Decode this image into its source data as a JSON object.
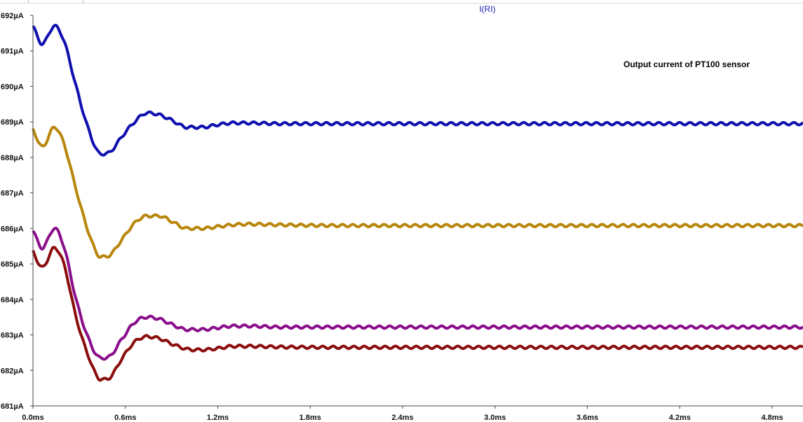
{
  "window": {
    "trace_expression": "I(RI)"
  },
  "chart_data": {
    "type": "line",
    "title": "I(RI)",
    "xlabel": "",
    "ylabel": "",
    "xlim": [
      0,
      5.0
    ],
    "ylim": [
      681,
      692
    ],
    "x_unit": "ms",
    "y_unit": "µA",
    "grid": false,
    "x_ticks": [
      "0.0ms",
      "0.6ms",
      "1.2ms",
      "1.8ms",
      "2.4ms",
      "3.0ms",
      "3.6ms",
      "4.2ms",
      "4.8ms"
    ],
    "y_ticks": [
      "681µA",
      "682µA",
      "683µA",
      "684µA",
      "685µA",
      "686µA",
      "687µA",
      "688µA",
      "689µA",
      "690µA",
      "691µA",
      "692µA"
    ],
    "annotations": [
      {
        "text": "Output current of PT100 sensor"
      }
    ],
    "series": [
      {
        "color": "#1010b0",
        "x": [
          0.0,
          0.06,
          0.14,
          0.2,
          0.28,
          0.36,
          0.44,
          0.5,
          0.58,
          0.66,
          0.74,
          0.82,
          0.9,
          1.0,
          1.1,
          1.2,
          1.3,
          1.4,
          1.6,
          2.0,
          3.0,
          4.0,
          5.0
        ],
        "y": [
          691.7,
          691.2,
          691.7,
          691.3,
          690.0,
          688.8,
          688.1,
          688.15,
          688.6,
          689.0,
          689.25,
          689.2,
          689.05,
          688.85,
          688.85,
          688.92,
          688.97,
          688.97,
          688.95,
          688.95,
          688.95,
          688.95,
          688.95
        ]
      },
      {
        "color": "#b8860b",
        "x": [
          0.0,
          0.06,
          0.14,
          0.2,
          0.28,
          0.36,
          0.44,
          0.5,
          0.58,
          0.66,
          0.74,
          0.82,
          0.9,
          1.0,
          1.1,
          1.2,
          1.3,
          1.4,
          1.6,
          2.0,
          3.0,
          4.0,
          5.0
        ],
        "y": [
          688.8,
          688.3,
          688.85,
          688.4,
          687.1,
          685.9,
          685.2,
          685.25,
          685.7,
          686.15,
          686.35,
          686.35,
          686.2,
          686.0,
          686.0,
          686.05,
          686.1,
          686.12,
          686.1,
          686.08,
          686.08,
          686.08,
          686.08
        ]
      },
      {
        "color": "#8b0f8b",
        "x": [
          0.0,
          0.06,
          0.14,
          0.2,
          0.28,
          0.36,
          0.44,
          0.5,
          0.58,
          0.66,
          0.74,
          0.82,
          0.9,
          1.0,
          1.1,
          1.2,
          1.3,
          1.4,
          1.6,
          2.0,
          3.0,
          4.0,
          5.0
        ],
        "y": [
          685.95,
          685.45,
          686.0,
          685.5,
          684.0,
          682.9,
          682.35,
          682.4,
          682.9,
          683.35,
          683.5,
          683.45,
          683.3,
          683.15,
          683.15,
          683.2,
          683.25,
          683.25,
          683.22,
          683.22,
          683.22,
          683.22,
          683.22
        ]
      },
      {
        "color": "#8b0d0d",
        "x": [
          0.0,
          0.06,
          0.14,
          0.2,
          0.28,
          0.36,
          0.44,
          0.5,
          0.58,
          0.66,
          0.74,
          0.82,
          0.9,
          1.0,
          1.1,
          1.2,
          1.3,
          1.4,
          1.6,
          2.0,
          3.0,
          4.0,
          5.0
        ],
        "y": [
          685.35,
          684.9,
          685.45,
          685.0,
          683.5,
          682.4,
          681.75,
          681.8,
          682.35,
          682.8,
          682.95,
          682.9,
          682.75,
          682.6,
          682.58,
          682.62,
          682.68,
          682.68,
          682.66,
          682.65,
          682.65,
          682.65,
          682.65
        ]
      }
    ]
  }
}
